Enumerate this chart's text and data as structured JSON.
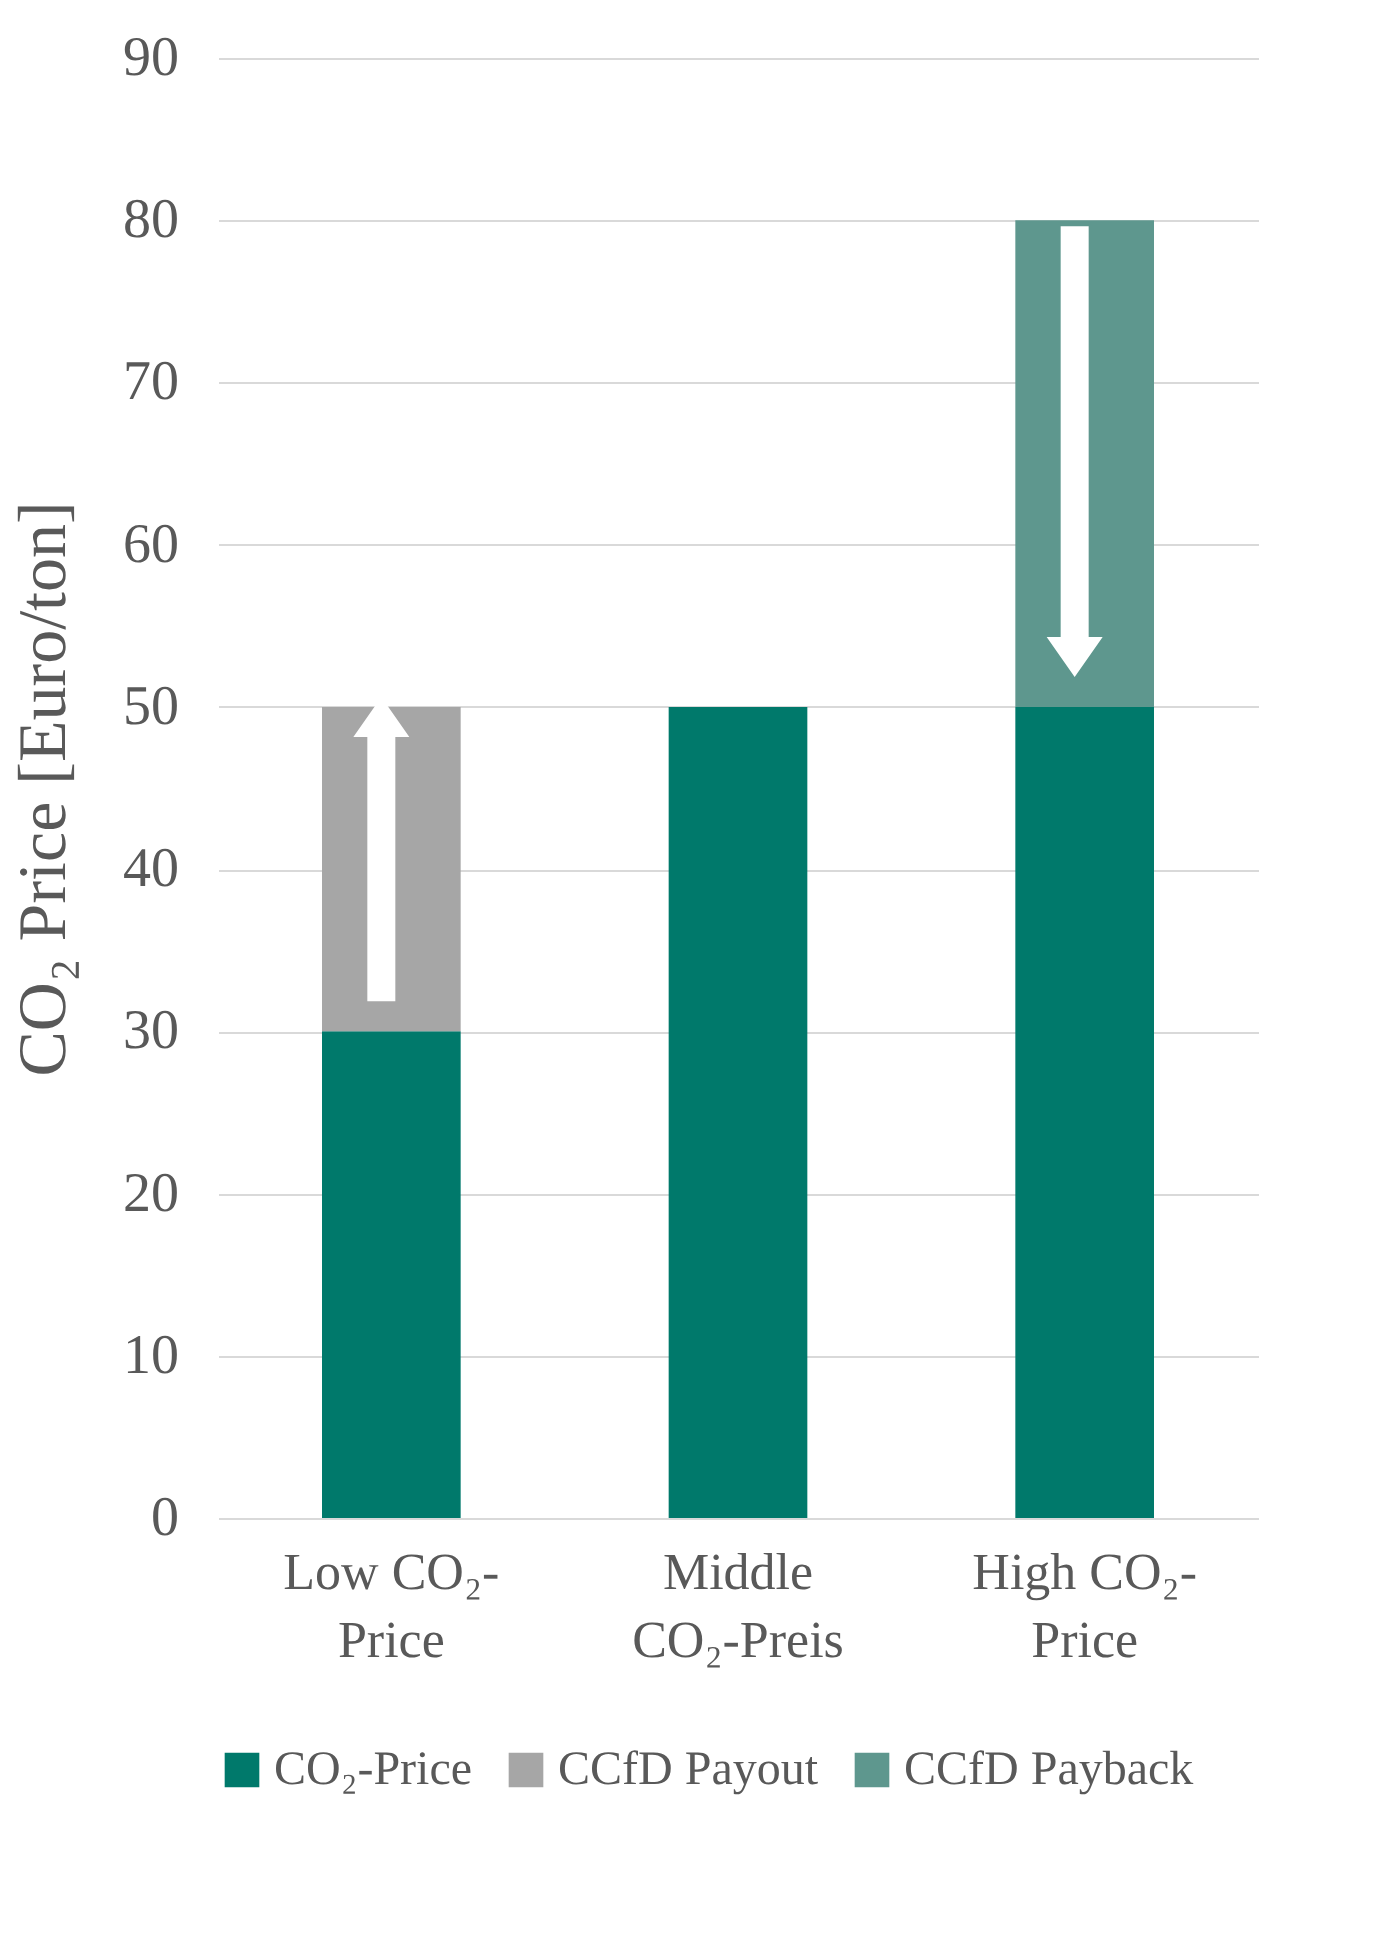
{
  "chart_data": {
    "type": "bar",
    "stacked": true,
    "ylabel": "CO₂ Price [Euro/ton]",
    "categories": [
      "Low CO₂-Price",
      "Middle CO₂-Preis",
      "High CO₂-Price"
    ],
    "series": [
      {
        "name": "CO₂-Price",
        "color": "#00796b",
        "values": [
          30,
          50,
          50
        ]
      },
      {
        "name": "CCfD Payout",
        "color": "#a6a6a6",
        "values": [
          20,
          0,
          0
        ]
      },
      {
        "name": "CCfD Payback",
        "color": "#5e978e",
        "values": [
          0,
          0,
          30
        ]
      }
    ],
    "ylim": [
      0,
      90
    ],
    "yticks": [
      0,
      10,
      20,
      30,
      40,
      50,
      60,
      70,
      80,
      90
    ],
    "grid": "y",
    "legend": "bottom"
  }
}
